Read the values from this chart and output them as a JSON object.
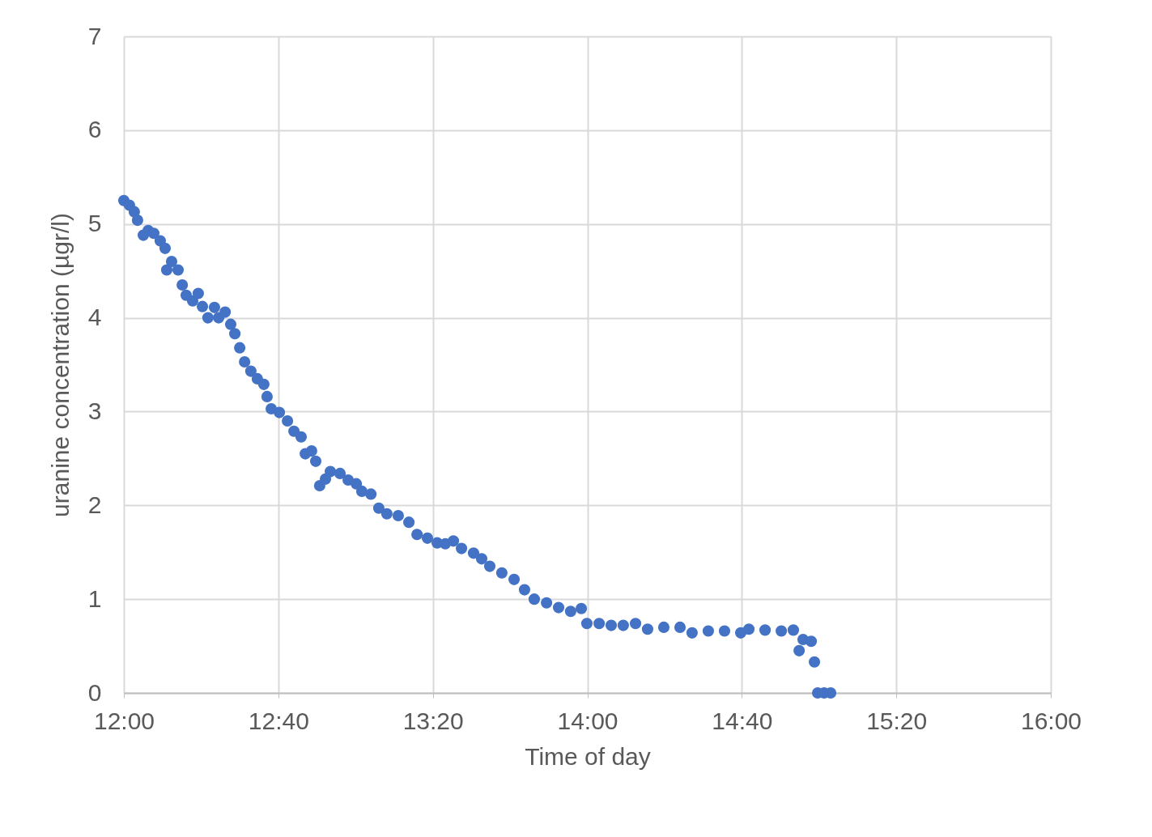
{
  "chart_data": {
    "type": "scatter",
    "xlabel": "Time of day",
    "ylabel": "uranine concentration (µgr/l)",
    "marker": "circle",
    "grid": true,
    "xlim": [
      12,
      16
    ],
    "xticks": [
      {
        "value": 12,
        "label": "12:00"
      },
      {
        "value": 12.6667,
        "label": "12:40"
      },
      {
        "value": 13.3333,
        "label": "13:20"
      },
      {
        "value": 14,
        "label": "14:00"
      },
      {
        "value": 14.6667,
        "label": "14:40"
      },
      {
        "value": 15.3333,
        "label": "15:20"
      },
      {
        "value": 16,
        "label": "16:00"
      }
    ],
    "ylim": [
      0,
      7
    ],
    "yticks": [
      0,
      1,
      2,
      3,
      4,
      5,
      6,
      7
    ],
    "x": [
      12.0,
      12.024,
      12.045,
      12.059,
      12.084,
      12.105,
      12.129,
      12.157,
      12.178,
      12.185,
      12.206,
      12.234,
      12.252,
      12.269,
      12.297,
      12.321,
      12.339,
      12.363,
      12.391,
      12.409,
      12.437,
      12.461,
      12.479,
      12.5,
      12.521,
      12.548,
      12.576,
      12.604,
      12.618,
      12.636,
      12.671,
      12.706,
      12.734,
      12.765,
      12.783,
      12.81,
      12.828,
      12.845,
      12.87,
      12.891,
      12.933,
      12.968,
      13.003,
      13.027,
      13.066,
      13.1,
      13.135,
      13.184,
      13.23,
      13.265,
      13.31,
      13.352,
      13.387,
      13.422,
      13.457,
      13.509,
      13.544,
      13.579,
      13.631,
      13.684,
      13.729,
      13.771,
      13.824,
      13.876,
      13.928,
      13.974,
      13.998,
      14.051,
      14.103,
      14.155,
      14.208,
      14.26,
      14.33,
      14.4,
      14.452,
      14.522,
      14.592,
      14.662,
      14.697,
      14.767,
      14.837,
      14.889,
      14.914,
      14.931,
      14.966,
      14.98,
      14.994,
      15.022,
      15.05
    ],
    "series": [
      {
        "color": "#4472c4",
        "values": [
          5.25,
          5.2,
          5.13,
          5.04,
          4.88,
          4.93,
          4.9,
          4.82,
          4.74,
          4.51,
          4.6,
          4.51,
          4.35,
          4.24,
          4.18,
          4.26,
          4.12,
          4.0,
          4.11,
          4.0,
          4.06,
          3.93,
          3.83,
          3.68,
          3.53,
          3.43,
          3.35,
          3.29,
          3.16,
          3.03,
          2.99,
          2.9,
          2.79,
          2.73,
          2.55,
          2.58,
          2.47,
          2.21,
          2.28,
          2.36,
          2.34,
          2.27,
          2.23,
          2.15,
          2.12,
          1.97,
          1.91,
          1.89,
          1.82,
          1.69,
          1.65,
          1.6,
          1.59,
          1.62,
          1.54,
          1.49,
          1.43,
          1.35,
          1.28,
          1.21,
          1.1,
          1.0,
          0.96,
          0.91,
          0.87,
          0.9,
          0.74,
          0.74,
          0.72,
          0.72,
          0.74,
          0.68,
          0.7,
          0.7,
          0.64,
          0.66,
          0.66,
          0.64,
          0.68,
          0.67,
          0.66,
          0.67,
          0.45,
          0.57,
          0.55,
          0.33,
          0,
          0,
          0
        ]
      }
    ]
  }
}
